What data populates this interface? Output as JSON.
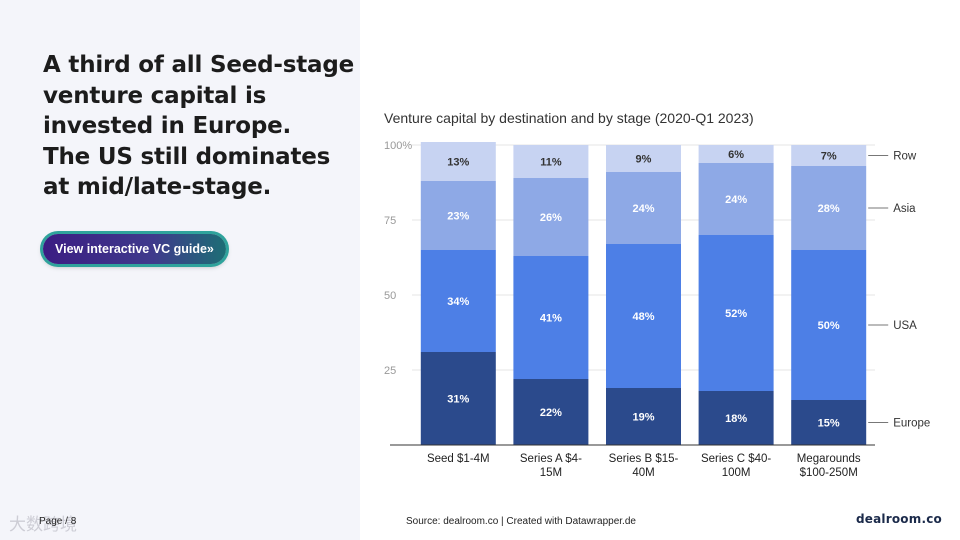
{
  "headline": {
    "lines": [
      "A third of all Seed-stage",
      "venture capital is",
      "invested in Europe.",
      "The US still dominates",
      "at mid/late-stage."
    ]
  },
  "cta": {
    "label": "View interactive VC guide»"
  },
  "footer": {
    "page": "Page / 8",
    "source": "Source: dealroom.co | Created with Datawrapper.de",
    "logo": "dealroom.co",
    "watermark": "大数跨境"
  },
  "colors": {
    "Europe": "#2b4a8c",
    "USA": "#4d7fe6",
    "Asia": "#8ea9e6",
    "Row": "#c7d3f2"
  },
  "chart_data": {
    "type": "bar",
    "stacked": true,
    "title": "Venture capital by destination and by stage (2020-Q1 2023)",
    "categories": [
      [
        "Seed $1-4M"
      ],
      [
        "Series A $4-",
        "15M"
      ],
      [
        "Series B $15-",
        "40M"
      ],
      [
        "Series C $40-",
        "100M"
      ],
      [
        "Megarounds",
        "$100-250M"
      ]
    ],
    "series": [
      {
        "name": "Europe",
        "values": [
          31,
          22,
          19,
          18,
          15
        ],
        "labels": [
          "31%",
          "22%",
          "19%",
          "18%",
          "15%"
        ]
      },
      {
        "name": "USA",
        "values": [
          34,
          41,
          48,
          52,
          50
        ],
        "labels": [
          "34%",
          "41%",
          "48%",
          "52%",
          "50%"
        ]
      },
      {
        "name": "Asia",
        "values": [
          23,
          26,
          24,
          24,
          28
        ],
        "labels": [
          "23%",
          "26%",
          "24%",
          "24%",
          "28%"
        ]
      },
      {
        "name": "Row",
        "values": [
          13,
          11,
          9,
          6,
          7
        ],
        "labels": [
          "13%",
          "11%",
          "9%",
          "6%",
          "7%"
        ]
      }
    ],
    "legend": [
      "Row",
      "Asia",
      "USA",
      "Europe"
    ],
    "legend_placement": "right",
    "yticks": [
      "100%",
      "75",
      "50",
      "25"
    ],
    "ytick_values": [
      100,
      75,
      50,
      25
    ],
    "ylim": [
      0,
      100
    ],
    "grid": true
  }
}
